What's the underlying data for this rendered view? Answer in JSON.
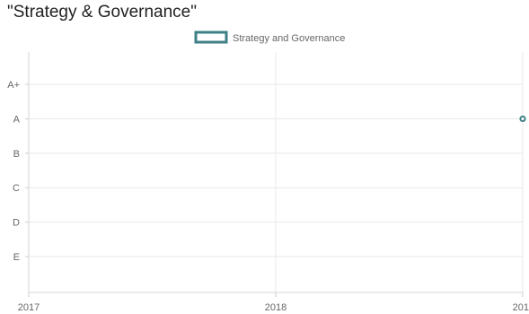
{
  "page": {
    "title": "\"Strategy & Governance\""
  },
  "colors": {
    "series": "#3e8086",
    "grid": "#e8e8e8",
    "tick_text": "#666666"
  },
  "chart_data": {
    "type": "line",
    "title": "",
    "xlabel": "",
    "ylabel": "",
    "x_ticks": [
      "2017",
      "2018",
      "201"
    ],
    "x_range": [
      2017,
      2019
    ],
    "y_categories": [
      "A+",
      "A",
      "B",
      "C",
      "D",
      "E"
    ],
    "legend_position": "top",
    "grid": true,
    "series": [
      {
        "name": "Strategy and Governance",
        "points": [
          {
            "x": 2019,
            "y": "A"
          }
        ]
      }
    ]
  }
}
